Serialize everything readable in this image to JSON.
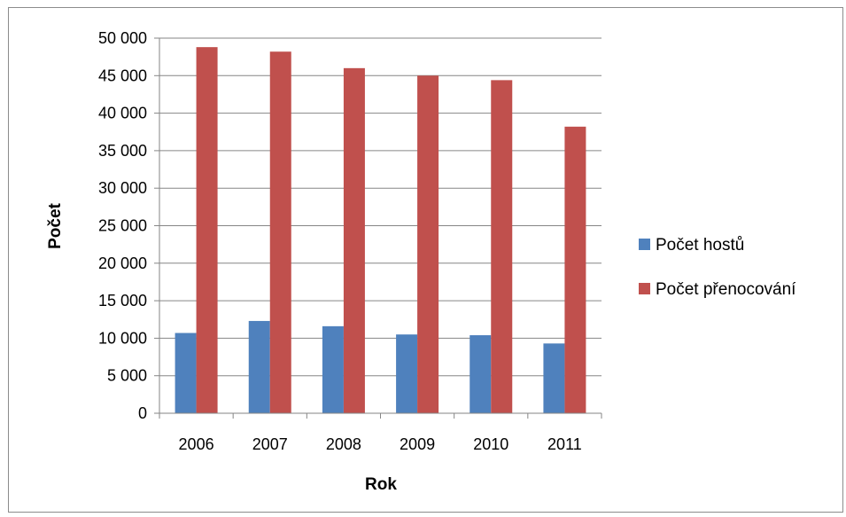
{
  "chart_data": {
    "type": "bar",
    "title": "",
    "xlabel": "Rok",
    "ylabel": "Počet",
    "categories": [
      "2006",
      "2007",
      "2008",
      "2009",
      "2010",
      "2011"
    ],
    "series": [
      {
        "name": "Počet hostů",
        "color": "#4F81BD",
        "values": [
          10700,
          12300,
          11600,
          10500,
          10400,
          9300
        ]
      },
      {
        "name": "Počet přenocování",
        "color": "#C0504D",
        "values": [
          48800,
          48200,
          46000,
          45000,
          44400,
          38200
        ]
      }
    ],
    "ylim": [
      0,
      50000
    ],
    "yticks": [
      "0",
      "5 000",
      "10 000",
      "15 000",
      "20 000",
      "25 000",
      "30 000",
      "35 000",
      "40 000",
      "45 000",
      "50 000"
    ],
    "grid": true,
    "legend_position": "right"
  }
}
